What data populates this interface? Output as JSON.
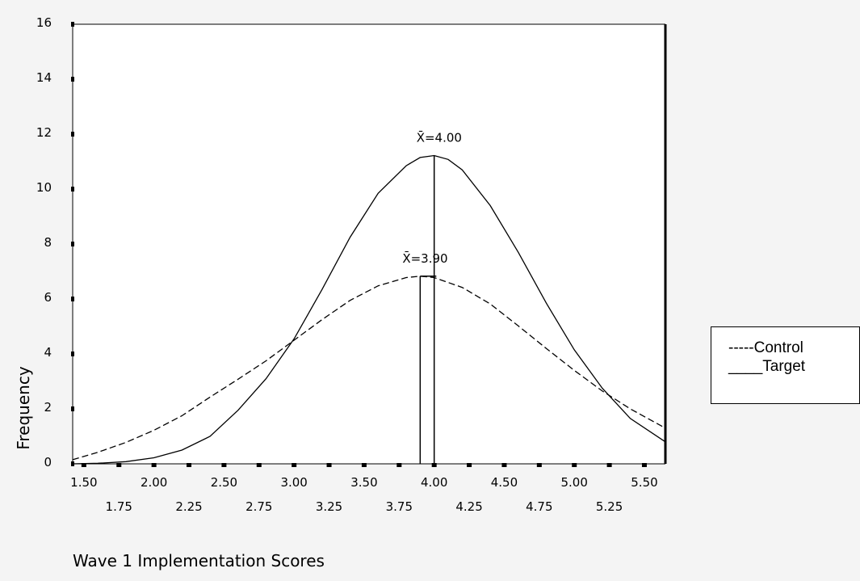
{
  "chart_data": {
    "type": "line",
    "title": "",
    "xlabel": "Wave 1 Implementation Scores",
    "ylabel": "Frequency",
    "xlim": [
      1.42,
      5.65
    ],
    "ylim": [
      0,
      16
    ],
    "x_ticks_row1": [
      "1.50",
      "2.00",
      "2.50",
      "3.00",
      "3.50",
      "4.00",
      "4.50",
      "5.00",
      "5.50"
    ],
    "x_ticks_row2": [
      "1.75",
      "2.25",
      "2.75",
      "3.25",
      "3.75",
      "4.25",
      "4.75",
      "5.25"
    ],
    "y_ticks": [
      "0",
      "2",
      "4",
      "6",
      "8",
      "10",
      "12",
      "14",
      "16"
    ],
    "grid": false,
    "legend_position": "right",
    "series": [
      {
        "name": "Control",
        "style": "dashed",
        "x": [
          1.42,
          1.6,
          1.8,
          2.0,
          2.2,
          2.4,
          2.6,
          2.8,
          3.0,
          3.2,
          3.4,
          3.6,
          3.8,
          3.9,
          4.0,
          4.2,
          4.4,
          4.6,
          4.8,
          5.0,
          5.2,
          5.4,
          5.65
        ],
        "y": [
          0.15,
          0.42,
          0.78,
          1.22,
          1.75,
          2.43,
          3.08,
          3.75,
          4.5,
          5.25,
          5.95,
          6.48,
          6.78,
          6.83,
          6.78,
          6.42,
          5.82,
          5.02,
          4.2,
          3.4,
          2.65,
          2.0,
          1.3
        ]
      },
      {
        "name": "Target",
        "style": "solid",
        "x": [
          1.42,
          1.6,
          1.8,
          2.0,
          2.2,
          2.4,
          2.6,
          2.8,
          3.0,
          3.2,
          3.4,
          3.6,
          3.8,
          3.9,
          4.0,
          4.1,
          4.2,
          4.4,
          4.6,
          4.8,
          5.0,
          5.2,
          5.4,
          5.65
        ],
        "y": [
          0.0,
          0.02,
          0.08,
          0.22,
          0.5,
          1.0,
          1.95,
          3.1,
          4.55,
          6.35,
          8.25,
          9.85,
          10.85,
          11.15,
          11.22,
          11.08,
          10.7,
          9.4,
          7.7,
          5.85,
          4.15,
          2.75,
          1.65,
          0.8
        ]
      }
    ],
    "annotations": [
      {
        "text": "X̄=4.00",
        "x": 4.0,
        "y": 11.22
      },
      {
        "text": "X̄=3.90",
        "x": 3.9,
        "y": 6.83
      }
    ],
    "legend_entries": [
      "-----Control",
      "____Target"
    ]
  }
}
